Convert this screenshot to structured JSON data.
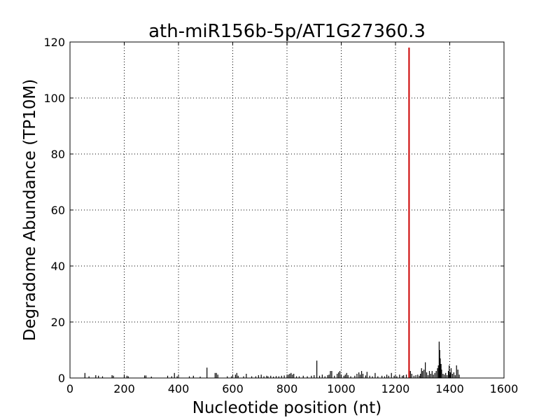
{
  "chart_data": {
    "type": "bar",
    "title": "ath-miR156b-5p/AT1G27360.3",
    "xlabel": "Nucleotide position (nt)",
    "ylabel": "Degradome Abundance (TP10M)",
    "xlim": [
      0,
      1600
    ],
    "ylim": [
      0,
      120
    ],
    "xticks": [
      "0",
      "200",
      "400",
      "600",
      "800",
      "1000",
      "1200",
      "1400",
      "1600"
    ],
    "yticks": [
      "0",
      "20",
      "40",
      "60",
      "80",
      "100",
      "120"
    ],
    "grid": true,
    "colors": {
      "background": "#87ceeb",
      "series": "#000000",
      "highlight": "#cc0000"
    },
    "series": [
      {
        "color": "#000000",
        "points": [
          [
            55,
            1.8
          ],
          [
            70,
            0.6
          ],
          [
            95,
            1.0
          ],
          [
            105,
            0.8
          ],
          [
            120,
            0.6
          ],
          [
            155,
            1.0
          ],
          [
            160,
            0.8
          ],
          [
            200,
            1.2
          ],
          [
            210,
            0.8
          ],
          [
            215,
            0.6
          ],
          [
            275,
            0.9
          ],
          [
            280,
            0.9
          ],
          [
            300,
            0.5
          ],
          [
            360,
            0.8
          ],
          [
            375,
            0.6
          ],
          [
            385,
            1.8
          ],
          [
            395,
            0.6
          ],
          [
            440,
            0.6
          ],
          [
            455,
            0.8
          ],
          [
            480,
            0.5
          ],
          [
            505,
            3.7
          ],
          [
            535,
            1.8
          ],
          [
            540,
            1.8
          ],
          [
            545,
            1.2
          ],
          [
            580,
            0.6
          ],
          [
            595,
            0.6
          ],
          [
            610,
            1.2
          ],
          [
            615,
            1.8
          ],
          [
            620,
            0.8
          ],
          [
            640,
            0.6
          ],
          [
            650,
            1.5
          ],
          [
            670,
            0.6
          ],
          [
            685,
            0.6
          ],
          [
            695,
            1.0
          ],
          [
            705,
            1.2
          ],
          [
            715,
            0.6
          ],
          [
            725,
            0.8
          ],
          [
            730,
            0.6
          ],
          [
            740,
            0.8
          ],
          [
            750,
            0.5
          ],
          [
            760,
            0.7
          ],
          [
            770,
            0.6
          ],
          [
            780,
            0.8
          ],
          [
            790,
            0.9
          ],
          [
            800,
            0.6
          ],
          [
            805,
            1.2
          ],
          [
            810,
            1.5
          ],
          [
            815,
            1.8
          ],
          [
            820,
            1.2
          ],
          [
            825,
            1.5
          ],
          [
            835,
            0.6
          ],
          [
            845,
            0.6
          ],
          [
            860,
            0.8
          ],
          [
            875,
            0.6
          ],
          [
            890,
            0.8
          ],
          [
            900,
            1.0
          ],
          [
            910,
            6.2
          ],
          [
            920,
            0.8
          ],
          [
            930,
            1.2
          ],
          [
            940,
            0.6
          ],
          [
            950,
            1.0
          ],
          [
            955,
            1.2
          ],
          [
            960,
            2.5
          ],
          [
            965,
            2.5
          ],
          [
            975,
            0.8
          ],
          [
            985,
            1.5
          ],
          [
            990,
            2.0
          ],
          [
            995,
            2.5
          ],
          [
            1000,
            1.2
          ],
          [
            1010,
            0.8
          ],
          [
            1015,
            1.2
          ],
          [
            1020,
            1.8
          ],
          [
            1025,
            1.0
          ],
          [
            1035,
            0.6
          ],
          [
            1050,
            0.8
          ],
          [
            1058,
            1.5
          ],
          [
            1065,
            2.0
          ],
          [
            1070,
            1.2
          ],
          [
            1075,
            2.5
          ],
          [
            1080,
            1.5
          ],
          [
            1090,
            0.9
          ],
          [
            1095,
            2.2
          ],
          [
            1105,
            0.8
          ],
          [
            1115,
            0.6
          ],
          [
            1125,
            1.8
          ],
          [
            1135,
            0.6
          ],
          [
            1150,
            0.8
          ],
          [
            1160,
            0.6
          ],
          [
            1168,
            1.2
          ],
          [
            1175,
            0.8
          ],
          [
            1185,
            1.8
          ],
          [
            1195,
            0.8
          ],
          [
            1205,
            0.6
          ],
          [
            1215,
            1.2
          ],
          [
            1225,
            0.8
          ],
          [
            1230,
            1.0
          ],
          [
            1240,
            1.2
          ],
          [
            1255,
            2.5
          ],
          [
            1260,
            1.5
          ],
          [
            1268,
            0.8
          ],
          [
            1275,
            1.0
          ],
          [
            1282,
            1.2
          ],
          [
            1288,
            0.8
          ],
          [
            1292,
            1.5
          ],
          [
            1296,
            3.5
          ],
          [
            1300,
            2.5
          ],
          [
            1305,
            3.0
          ],
          [
            1310,
            5.6
          ],
          [
            1315,
            2.0
          ],
          [
            1320,
            1.0
          ],
          [
            1325,
            2.5
          ],
          [
            1330,
            1.5
          ],
          [
            1335,
            2.5
          ],
          [
            1340,
            1.2
          ],
          [
            1345,
            1.8
          ],
          [
            1350,
            2.5
          ],
          [
            1355,
            3.5
          ],
          [
            1358,
            4.5
          ],
          [
            1361,
            13.0
          ],
          [
            1363,
            10.0
          ],
          [
            1365,
            7.0
          ],
          [
            1368,
            5.0
          ],
          [
            1370,
            3.0
          ],
          [
            1375,
            1.5
          ],
          [
            1380,
            1.2
          ],
          [
            1385,
            1.8
          ],
          [
            1390,
            1.0
          ],
          [
            1395,
            2.5
          ],
          [
            1398,
            4.5
          ],
          [
            1402,
            2.0
          ],
          [
            1405,
            3.5
          ],
          [
            1410,
            1.5
          ],
          [
            1415,
            2.0
          ],
          [
            1420,
            1.0
          ],
          [
            1425,
            4.5
          ],
          [
            1430,
            3.0
          ],
          [
            1435,
            1.2
          ]
        ]
      },
      {
        "color": "#cc0000",
        "points": [
          [
            1250,
            118
          ]
        ]
      }
    ]
  }
}
